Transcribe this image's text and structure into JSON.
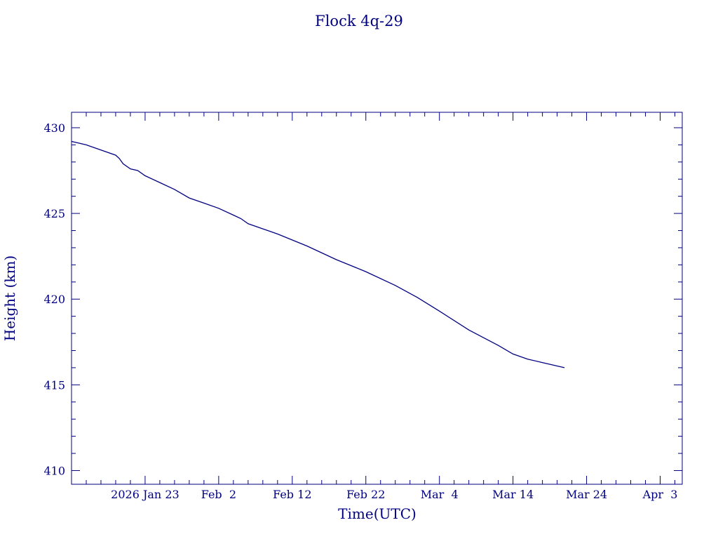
{
  "chart_data": {
    "type": "line",
    "title": "Flock 4q-29",
    "xlabel": "Time(UTC)",
    "ylabel": "Height (km)",
    "colors": {
      "line": "#000080",
      "axes": "#000080",
      "text": "#000080"
    },
    "grid": false,
    "xlim": [
      "2026-01-13",
      "2026-04-06"
    ],
    "ylim": [
      409.2,
      430.9
    ],
    "x_ticks": [
      {
        "value": "2026-01-23",
        "label": "2026 Jan 23"
      },
      {
        "value": "2026-02-02",
        "label": "Feb  2"
      },
      {
        "value": "2026-02-12",
        "label": "Feb 12"
      },
      {
        "value": "2026-02-22",
        "label": "Feb 22"
      },
      {
        "value": "2026-03-04",
        "label": "Mar  4"
      },
      {
        "value": "2026-03-14",
        "label": "Mar 14"
      },
      {
        "value": "2026-03-24",
        "label": "Mar 24"
      },
      {
        "value": "2026-04-03",
        "label": "Apr  3"
      }
    ],
    "y_ticks": [
      {
        "value": 410,
        "label": "410"
      },
      {
        "value": 415,
        "label": "415"
      },
      {
        "value": 420,
        "label": "420"
      },
      {
        "value": 425,
        "label": "425"
      },
      {
        "value": 430,
        "label": "430"
      }
    ],
    "series": [
      {
        "x": [
          "2026-01-13",
          "2026-01-15",
          "2026-01-17",
          "2026-01-19",
          "2026-01-19T12:00",
          "2026-01-20",
          "2026-01-21",
          "2026-01-22",
          "2026-01-23",
          "2026-01-25",
          "2026-01-27",
          "2026-01-29",
          "2026-01-31",
          "2026-02-02",
          "2026-02-04",
          "2026-02-05",
          "2026-02-06",
          "2026-02-10",
          "2026-02-14",
          "2026-02-18",
          "2026-02-22",
          "2026-02-26",
          "2026-03-01",
          "2026-03-04",
          "2026-03-08",
          "2026-03-12",
          "2026-03-14",
          "2026-03-16",
          "2026-03-18",
          "2026-03-20",
          "2026-03-21"
        ],
        "y": [
          429.2,
          429.0,
          428.7,
          428.4,
          428.2,
          427.9,
          427.6,
          427.5,
          427.2,
          426.8,
          426.4,
          425.9,
          425.6,
          425.3,
          424.9,
          424.7,
          424.4,
          423.8,
          423.1,
          422.3,
          421.6,
          420.8,
          420.1,
          419.3,
          418.2,
          417.3,
          416.8,
          416.5,
          416.3,
          416.1,
          416.0
        ]
      }
    ]
  }
}
